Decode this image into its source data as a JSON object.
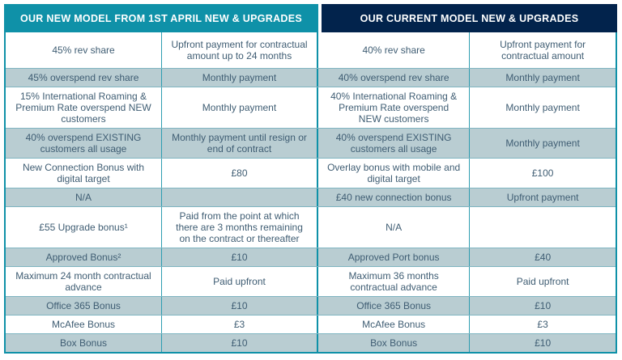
{
  "colors": {
    "teal_accent": "#0f91a8",
    "navy_accent": "#02234c",
    "row_shaded": "#b9cdd2",
    "text": "#3f5d73"
  },
  "headers": {
    "new_model": "OUR NEW MODEL FROM 1ST APRIL NEW & UPGRADES",
    "current_model": "OUR CURRENT MODEL NEW & UPGRADES"
  },
  "table": {
    "columns": [
      "new_item",
      "new_payment",
      "current_item",
      "current_payment"
    ],
    "rows": [
      {
        "new_item": "45% rev share",
        "new_payment": "Upfront payment for contractual amount up to 24 months",
        "current_item": "40% rev share",
        "current_payment": "Upfront payment for contractual amount"
      },
      {
        "new_item": "45% overspend rev share",
        "new_payment": "Monthly payment",
        "current_item": "40% overspend rev share",
        "current_payment": "Monthly payment"
      },
      {
        "new_item": "15% International Roaming & Premium Rate overspend NEW customers",
        "new_payment": "Monthly payment",
        "current_item": "40% International Roaming & Premium Rate overspend NEW customers",
        "current_payment": "Monthly payment"
      },
      {
        "new_item": "40% overspend EXISTING customers all usage",
        "new_payment": "Monthly payment until resign or end of contract",
        "current_item": "40% overspend EXISTING customers all usage",
        "current_payment": "Monthly payment"
      },
      {
        "new_item": "New Connection Bonus with digital target",
        "new_payment": "£80",
        "current_item": "Overlay bonus with mobile and digital target",
        "current_payment": "£100"
      },
      {
        "new_item": "N/A",
        "new_payment": "",
        "current_item": "£40 new connection bonus",
        "current_payment": "Upfront payment"
      },
      {
        "new_item": "£55 Upgrade bonus¹",
        "new_payment": "Paid from the point at which there are 3 months remaining on the contract or thereafter",
        "current_item": "N/A",
        "current_payment": ""
      },
      {
        "new_item": "Approved Bonus²",
        "new_payment": "£10",
        "current_item": "Approved Port bonus",
        "current_payment": "£40"
      },
      {
        "new_item": "Maximum 24 month contractual advance",
        "new_payment": "Paid upfront",
        "current_item": "Maximum 36 months contractual advance",
        "current_payment": "Paid upfront"
      },
      {
        "new_item": "Office 365 Bonus",
        "new_payment": "£10",
        "current_item": "Office 365 Bonus",
        "current_payment": "£10"
      },
      {
        "new_item": "McAfee Bonus",
        "new_payment": "£3",
        "current_item": "McAfee Bonus",
        "current_payment": "£3"
      },
      {
        "new_item": "Box Bonus",
        "new_payment": "£10",
        "current_item": "Box Bonus",
        "current_payment": "£10"
      }
    ]
  }
}
